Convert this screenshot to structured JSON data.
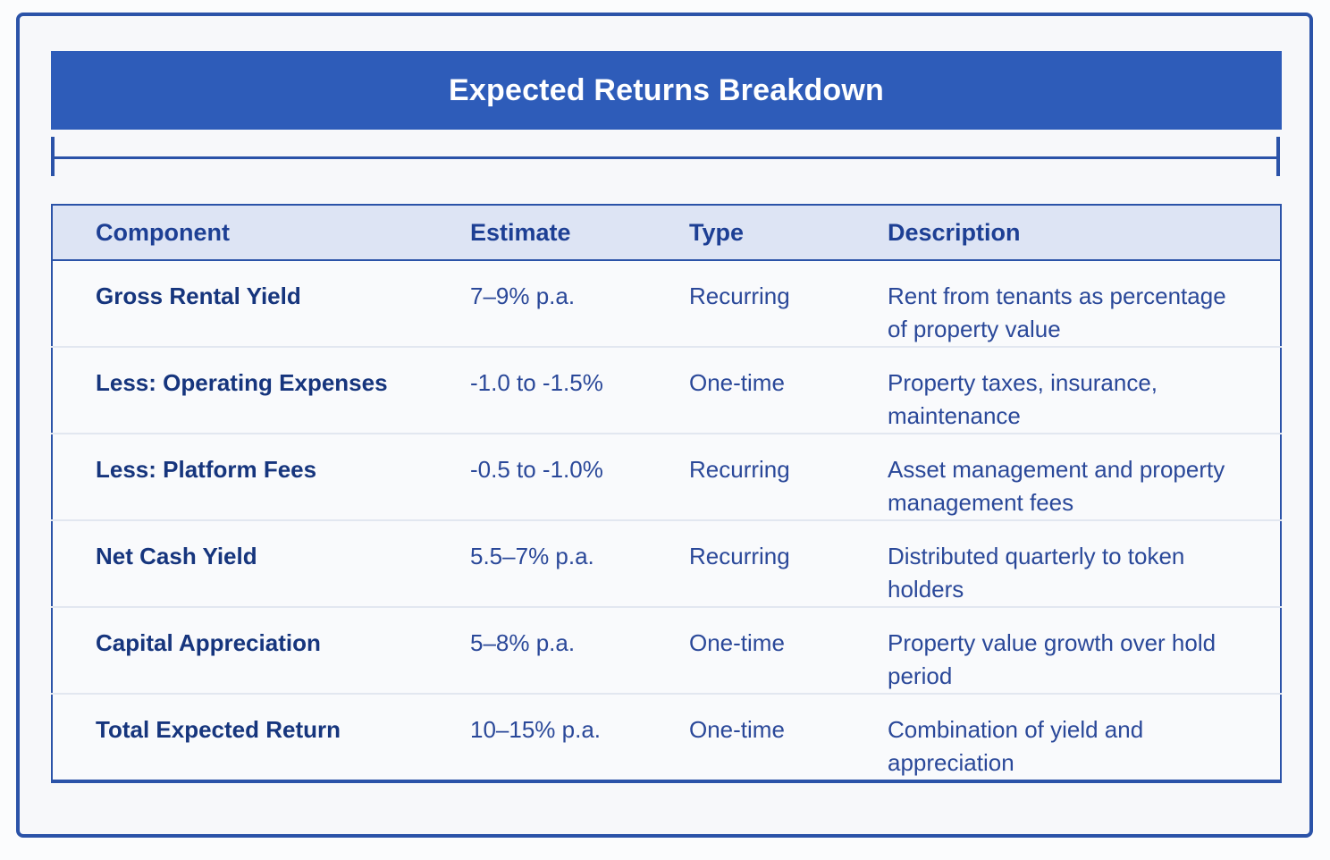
{
  "page": {
    "title": "Expected Returns Breakdown"
  },
  "colors": {
    "banner_bg": "#2e5cb9",
    "banner_text": "#ffffff",
    "frame_border": "#2b53a8",
    "table_border": "#2b53a8",
    "header_bg": "#dde4f4",
    "header_text": "#1d3f94",
    "component_text": "#16357d",
    "body_text": "#2a4899",
    "row_bg": "#f9fafc",
    "row_divider": "#e2e7f0",
    "page_bg": "#f7f8fa"
  },
  "table": {
    "columns": [
      {
        "key": "component",
        "label": "Component"
      },
      {
        "key": "estimate",
        "label": "Estimate"
      },
      {
        "key": "type",
        "label": "Type"
      },
      {
        "key": "description",
        "label": "Description"
      }
    ],
    "rows": [
      {
        "component": "Gross Rental Yield",
        "estimate": "7–9% p.a.",
        "type": "Recurring",
        "description": "Rent from tenants as percentage of property value"
      },
      {
        "component": "Less: Operating Expenses",
        "estimate": "-1.0 to -1.5%",
        "type": "One-time",
        "description": "Property taxes, insurance, maintenance"
      },
      {
        "component": "Less: Platform Fees",
        "estimate": "-0.5 to -1.0%",
        "type": "Recurring",
        "description": "Asset management and property management fees"
      },
      {
        "component": "Net Cash Yield",
        "estimate": "5.5–7% p.a.",
        "type": "Recurring",
        "description": "Distributed quarterly to token holders"
      },
      {
        "component": "Capital Appreciation",
        "estimate": "5–8% p.a.",
        "type": "One-time",
        "description": "Property value growth over hold period"
      },
      {
        "component": "Total Expected Return",
        "estimate": "10–15% p.a.",
        "type": "One-time",
        "description": "Combination of yield and appreciation"
      }
    ]
  }
}
